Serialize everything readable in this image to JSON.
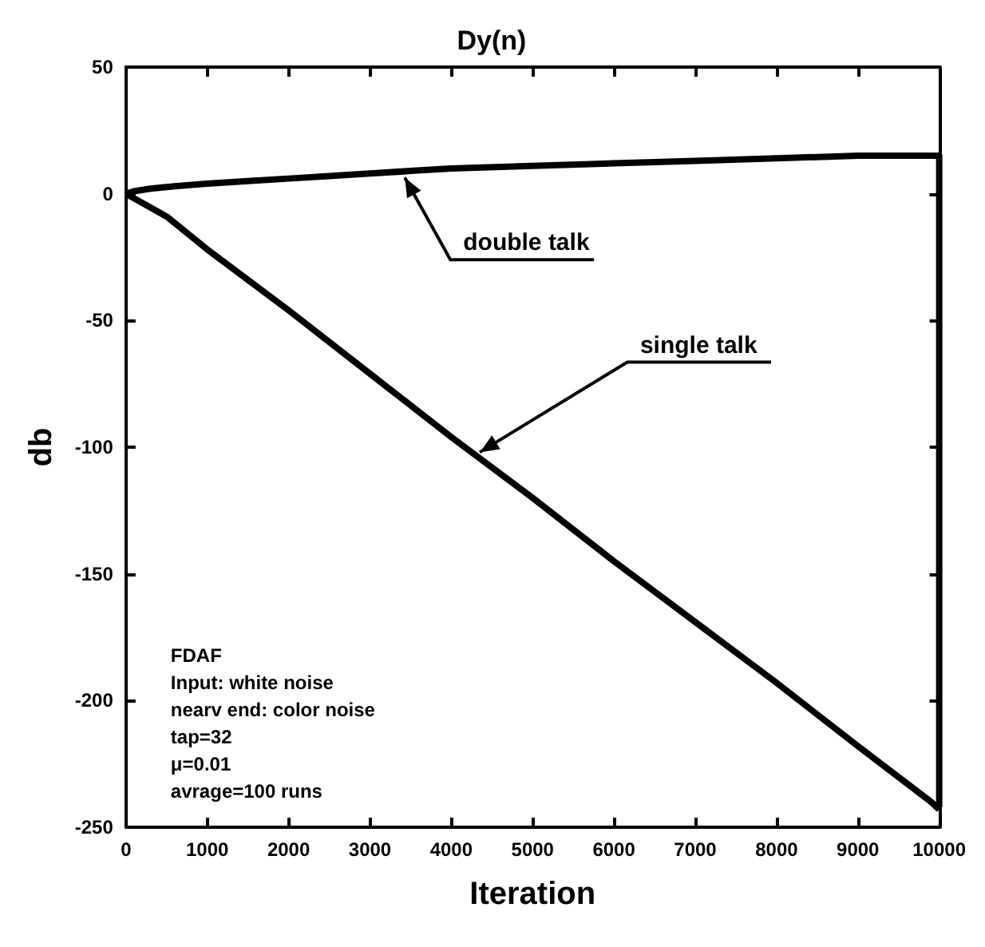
{
  "chart_data": {
    "type": "line",
    "title": "Dy(n)",
    "xlabel": "Iteration",
    "ylabel": "db",
    "xlim": [
      0,
      10000
    ],
    "xticks": [
      0,
      1000,
      2000,
      3000,
      4000,
      5000,
      6000,
      7000,
      8000,
      9000,
      10000
    ],
    "ylim": [
      -250,
      50
    ],
    "yticks": [
      -250,
      -200,
      -150,
      -100,
      -50,
      0,
      50
    ],
    "grid": false,
    "marker": "none",
    "line_style": "solid",
    "series": [
      {
        "color": "#000000",
        "x": [
          0,
          100,
          300,
          600,
          1000,
          1500,
          2000,
          2500,
          3000,
          3500,
          4000,
          5000,
          6000,
          7000,
          8000,
          9000,
          9900,
          10000,
          10000
        ],
        "values": [
          0,
          1,
          2,
          3,
          4,
          5,
          6,
          7,
          8,
          9,
          10,
          11,
          12,
          13,
          14,
          15,
          15,
          15,
          -242
        ]
      },
      {
        "color": "#000000",
        "x": [
          0,
          500,
          1000,
          2000,
          3000,
          4000,
          5000,
          6000,
          7000,
          8000,
          9000,
          9900,
          10000
        ],
        "values": [
          0,
          -9,
          -22,
          -46,
          -71,
          -96,
          -120,
          -145,
          -169,
          -193,
          -218,
          -240,
          -243
        ]
      }
    ],
    "annotations": [
      {
        "text": "double talk",
        "x": 3400,
        "y": 8
      },
      {
        "text": "single talk",
        "x": 4300,
        "y": -103
      },
      "FDAF\nInput: white noise\nnearv end: color noise\ntap=32\nμ=0.01\navrage=100 runs"
    ]
  }
}
